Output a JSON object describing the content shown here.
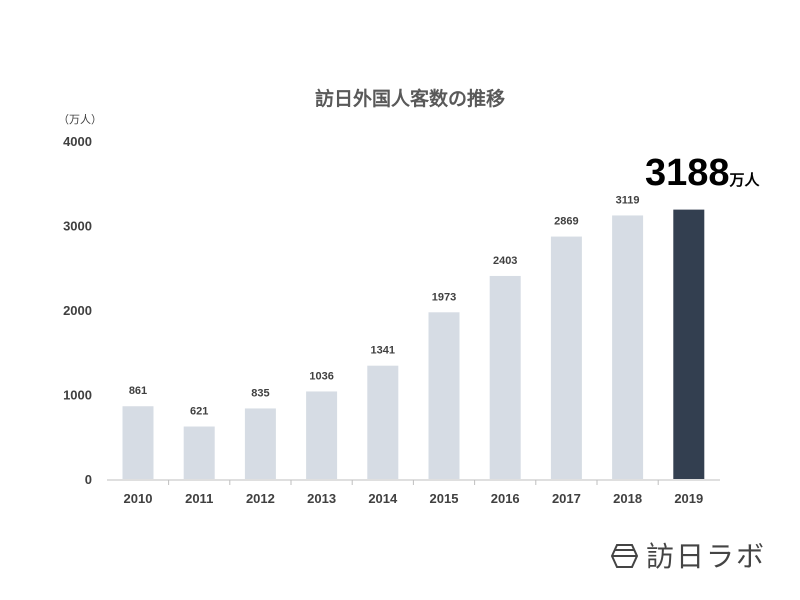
{
  "chart_data": {
    "type": "bar",
    "title": "訪日外国人客数の推移",
    "ylabel": "（万人）",
    "xlabel": "",
    "categories": [
      "2010",
      "2011",
      "2012",
      "2013",
      "2014",
      "2015",
      "2016",
      "2017",
      "2018",
      "2019"
    ],
    "values": [
      861,
      621,
      835,
      1036,
      1341,
      1973,
      2403,
      2869,
      3119,
      3188
    ],
    "ylim": [
      0,
      4000
    ],
    "yticks": [
      "0",
      "1000",
      "2000",
      "3000",
      "4000"
    ],
    "highlight": {
      "category": "2019",
      "label": "3188",
      "unit": "万人"
    },
    "colors": {
      "bar": "#d6dce4",
      "highlight": "#333f50"
    },
    "grid": false
  },
  "logo": {
    "text": "訪日ラボ"
  }
}
